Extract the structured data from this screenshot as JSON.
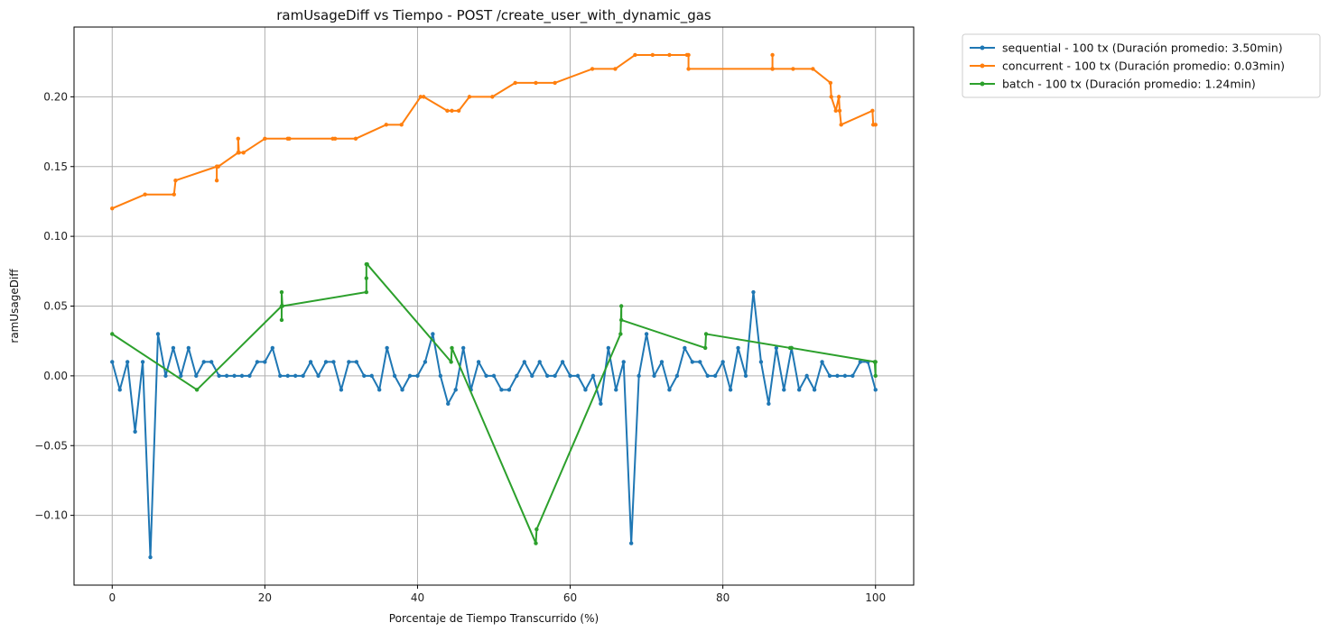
{
  "chart_data": {
    "type": "line",
    "title": "ramUsageDiff vs Tiempo - POST /create_user_with_dynamic_gas",
    "xlabel": "Porcentaje de Tiempo Transcurrido (%)",
    "ylabel": "ramUsageDiff",
    "xlim": [
      -5,
      105
    ],
    "ylim": [
      -0.15,
      0.25
    ],
    "xticks": [
      0,
      20,
      40,
      60,
      80,
      100
    ],
    "yticks": [
      -0.1,
      -0.05,
      0.0,
      0.05,
      0.1,
      0.15,
      0.2
    ],
    "xtick_labels": [
      "0",
      "20",
      "40",
      "60",
      "80",
      "100"
    ],
    "ytick_labels": [
      "−0.10",
      "−0.05",
      "0.00",
      "0.05",
      "0.10",
      "0.15",
      "0.20"
    ],
    "grid": true,
    "legend_position": "outside-top-right",
    "series": [
      {
        "name": "sequential - 100 tx (Duración promedio: 3.50min)",
        "color": "#1f77b4",
        "x": [
          0,
          1,
          2,
          3,
          4,
          5,
          6,
          7,
          8,
          9,
          10,
          11,
          12,
          13,
          14,
          15,
          16,
          17,
          18,
          19,
          20,
          21,
          22,
          23,
          24,
          25,
          26,
          27,
          28,
          29,
          30,
          31,
          32,
          33,
          34,
          35,
          36,
          37,
          38,
          39,
          40,
          41,
          42,
          43,
          44,
          45,
          46,
          47,
          48,
          49,
          50,
          51,
          52,
          53,
          54,
          55,
          56,
          57,
          58,
          59,
          60,
          61,
          62,
          63,
          64,
          65,
          66,
          67,
          68,
          69,
          70,
          71,
          72,
          73,
          74,
          75,
          76,
          77,
          78,
          79,
          80,
          81,
          82,
          83,
          84,
          85,
          86,
          87,
          88,
          89,
          90,
          91,
          92,
          93,
          94,
          95,
          96,
          97,
          98,
          99,
          100
        ],
        "y": [
          0.01,
          -0.01,
          0.01,
          -0.04,
          0.01,
          -0.13,
          0.03,
          0.0,
          0.02,
          0.0,
          0.02,
          0.0,
          0.01,
          0.01,
          0.0,
          0.0,
          0.0,
          0.0,
          0.0,
          0.01,
          0.01,
          0.02,
          0.0,
          0.0,
          0.0,
          0.0,
          0.01,
          0.0,
          0.01,
          0.01,
          -0.01,
          0.01,
          0.01,
          0.0,
          0.0,
          -0.01,
          0.02,
          0.0,
          -0.01,
          0.0,
          0.0,
          0.01,
          0.03,
          0.0,
          -0.02,
          -0.01,
          0.02,
          -0.01,
          0.01,
          0.0,
          0.0,
          -0.01,
          -0.01,
          0.0,
          0.01,
          0.0,
          0.01,
          0.0,
          0.0,
          0.01,
          0.0,
          0.0,
          -0.01,
          0.0,
          -0.02,
          0.02,
          -0.01,
          0.01,
          -0.12,
          0.0,
          0.03,
          0.0,
          0.01,
          -0.01,
          0.0,
          0.02,
          0.01,
          0.01,
          0.0,
          0.0,
          0.01,
          -0.01,
          0.02,
          0.0,
          0.06,
          0.01,
          -0.02,
          0.02,
          -0.01,
          0.02,
          -0.01,
          0.0,
          -0.01,
          0.01,
          0.0,
          0.0,
          0.0,
          0.0,
          0.01,
          0.01,
          -0.01
        ]
      },
      {
        "name": "concurrent - 100 tx (Duración promedio: 0.03min)",
        "color": "#ff7f0e",
        "x": [
          0,
          4.3,
          8.1,
          8.3,
          13.7,
          13.7,
          13.7,
          13.9,
          16.5,
          16.5,
          16.6,
          17.2,
          20.0,
          23.0,
          23.2,
          28.9,
          29.2,
          31.9,
          35.9,
          37.9,
          40.4,
          40.8,
          43.9,
          44.5,
          45.4,
          46.8,
          49.8,
          52.8,
          55.5,
          58.0,
          62.9,
          65.9,
          68.5,
          70.8,
          73.0,
          75.3,
          75.5,
          75.5,
          86.5,
          86.5,
          86.5,
          89.2,
          91.8,
          94.1,
          94.2,
          94.8,
          95.2,
          95.3,
          95.5,
          99.6,
          99.7,
          100.0
        ],
        "y": [
          0.12,
          0.13,
          0.13,
          0.14,
          0.15,
          0.14,
          0.15,
          0.15,
          0.16,
          0.17,
          0.16,
          0.16,
          0.17,
          0.17,
          0.17,
          0.17,
          0.17,
          0.17,
          0.18,
          0.18,
          0.2,
          0.2,
          0.19,
          0.19,
          0.19,
          0.2,
          0.2,
          0.21,
          0.21,
          0.21,
          0.22,
          0.22,
          0.23,
          0.23,
          0.23,
          0.23,
          0.23,
          0.22,
          0.22,
          0.23,
          0.22,
          0.22,
          0.22,
          0.21,
          0.2,
          0.19,
          0.2,
          0.19,
          0.18,
          0.19,
          0.18,
          0.18
        ]
      },
      {
        "name": "batch - 100 tx (Duración promedio: 1.24min)",
        "color": "#2ca02c",
        "x": [
          0,
          11.1,
          22.2,
          22.2,
          22.2,
          22.3,
          33.3,
          33.3,
          33.3,
          33.4,
          44.4,
          44.5,
          55.5,
          55.6,
          66.6,
          66.7,
          66.7,
          77.7,
          77.8,
          88.8,
          89.0,
          99.9,
          100.0,
          100.0
        ],
        "y": [
          0.03,
          -0.01,
          0.05,
          0.04,
          0.06,
          0.05,
          0.06,
          0.07,
          0.08,
          0.08,
          0.01,
          0.02,
          -0.12,
          -0.11,
          0.03,
          0.05,
          0.04,
          0.02,
          0.03,
          0.02,
          0.02,
          0.01,
          0.0,
          0.01
        ]
      }
    ]
  }
}
